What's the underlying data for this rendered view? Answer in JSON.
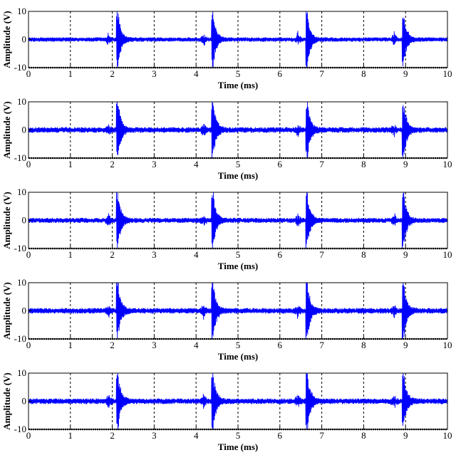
{
  "chart_data": [
    {
      "type": "line",
      "xlabel": "Time (ms)",
      "ylabel": "Amplitude (V)",
      "xlim": [
        0,
        10
      ],
      "ylim": [
        -10,
        10
      ],
      "xticks": [
        "0",
        "1",
        "2",
        "3",
        "4",
        "5",
        "6",
        "7",
        "8",
        "9",
        "10"
      ],
      "yticks": [
        "10",
        "0",
        "-10"
      ],
      "grid": "vertical dashed lines at x = 1 through 9",
      "series": [
        {
          "color": "#0000ff",
          "noise_amplitude": 0.8,
          "bursts": [
            {
              "x": 2.13,
              "peak": 10
            },
            {
              "x": 4.4,
              "peak": 10
            },
            {
              "x": 6.65,
              "peak": 10
            },
            {
              "x": 8.95,
              "peak": 10
            }
          ]
        }
      ]
    },
    {
      "type": "line",
      "xlabel": "Time (ms)",
      "ylabel": "Amplitude (V)",
      "xlim": [
        0,
        10
      ],
      "ylim": [
        -10,
        10
      ],
      "xticks": [
        "0",
        "1",
        "2",
        "3",
        "4",
        "5",
        "6",
        "7",
        "8",
        "9",
        "10"
      ],
      "yticks": [
        "10",
        "0",
        "-10"
      ],
      "grid": "vertical dashed lines at x = 1 through 9",
      "series": [
        {
          "color": "#0000ff",
          "noise_amplitude": 1.0,
          "bursts": [
            {
              "x": 2.13,
              "peak": 10
            },
            {
              "x": 4.4,
              "peak": 10
            },
            {
              "x": 6.65,
              "peak": 10
            },
            {
              "x": 8.95,
              "peak": 10
            }
          ]
        }
      ]
    },
    {
      "type": "line",
      "xlabel": "Time (ms)",
      "ylabel": "Amplitude (V)",
      "xlim": [
        0,
        10
      ],
      "ylim": [
        -10,
        10
      ],
      "xticks": [
        "0",
        "1",
        "2",
        "3",
        "4",
        "5",
        "6",
        "7",
        "8",
        "9",
        "10"
      ],
      "yticks": [
        "10",
        "0",
        "-10"
      ],
      "grid": "vertical dashed lines at x = 1 through 9",
      "series": [
        {
          "color": "#0000ff",
          "noise_amplitude": 0.9,
          "bursts": [
            {
              "x": 2.13,
              "peak": 10
            },
            {
              "x": 4.4,
              "peak": 10
            },
            {
              "x": 6.65,
              "peak": 10
            },
            {
              "x": 8.95,
              "peak": 10
            }
          ]
        }
      ]
    },
    {
      "type": "line",
      "xlabel": "Time (ms)",
      "ylabel": "Amplitude (V)",
      "xlim": [
        0,
        10
      ],
      "ylim": [
        -10,
        10
      ],
      "xticks": [
        "0",
        "1",
        "2",
        "3",
        "4",
        "5",
        "6",
        "7",
        "8",
        "9",
        "10"
      ],
      "yticks": [
        "10",
        "0",
        "-10"
      ],
      "grid": "vertical dashed lines at x = 1 through 9",
      "series": [
        {
          "color": "#0000ff",
          "noise_amplitude": 1.0,
          "bursts": [
            {
              "x": 2.13,
              "peak": 10
            },
            {
              "x": 4.4,
              "peak": 10
            },
            {
              "x": 6.65,
              "peak": 10
            },
            {
              "x": 8.95,
              "peak": 10
            }
          ]
        }
      ]
    },
    {
      "type": "line",
      "xlabel": "Time (ms)",
      "ylabel": "Amplitude (V)",
      "xlim": [
        0,
        10
      ],
      "ylim": [
        -10,
        10
      ],
      "xticks": [
        "0",
        "1",
        "2",
        "3",
        "4",
        "5",
        "6",
        "7",
        "8",
        "9",
        "10"
      ],
      "yticks": [
        "10",
        "0",
        "-10"
      ],
      "grid": "vertical dashed lines at x = 1 through 9",
      "series": [
        {
          "color": "#0000ff",
          "noise_amplitude": 1.0,
          "bursts": [
            {
              "x": 2.13,
              "peak": 10
            },
            {
              "x": 4.4,
              "peak": 10
            },
            {
              "x": 6.65,
              "peak": 10
            },
            {
              "x": 8.95,
              "peak": 10
            }
          ]
        }
      ]
    }
  ]
}
